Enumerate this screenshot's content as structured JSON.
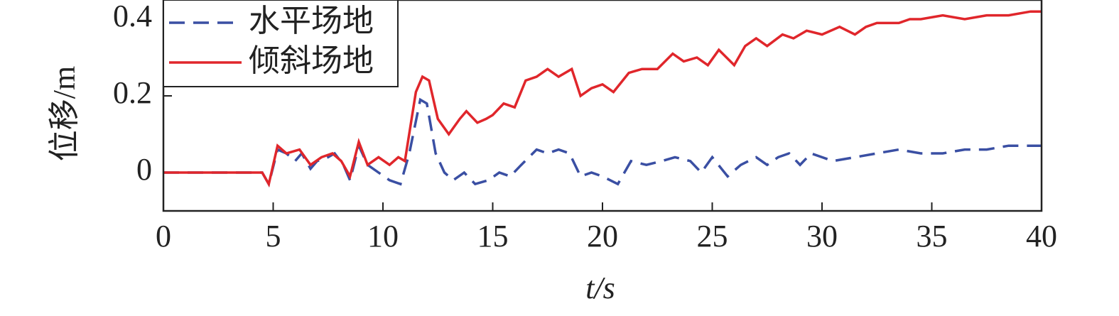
{
  "chart_data": {
    "type": "line",
    "xlabel": "t/s",
    "ylabel": "位移/m",
    "xlim": [
      0,
      40
    ],
    "xticks": [
      0,
      5,
      10,
      15,
      20,
      25,
      30,
      35,
      40
    ],
    "ylim": [
      -0.1,
      0.45
    ],
    "yticks": [
      0,
      0.2,
      0.4
    ],
    "legend": "upper left",
    "series": [
      {
        "name": "水平场地",
        "color": "#3a4fa3",
        "dash": true,
        "x": [
          0,
          4.5,
          4.8,
          5.2,
          5.6,
          6,
          6.3,
          6.7,
          7,
          7.5,
          7.8,
          8.2,
          8.5,
          8.9,
          9.3,
          9.8,
          10.3,
          10.8,
          11.2,
          11.7,
          12,
          12.4,
          12.8,
          13.2,
          13.7,
          14.2,
          14.8,
          15.3,
          15.8,
          16.3,
          17,
          17.5,
          18,
          18.5,
          19,
          19.5,
          20,
          20.7,
          21.3,
          22,
          22.7,
          23.3,
          24,
          24.5,
          25,
          25.7,
          26.3,
          27,
          27.5,
          28,
          28.5,
          29,
          29.5,
          30,
          30.5,
          31.5,
          32.5,
          33.5,
          34.5,
          35.5,
          36.5,
          37.5,
          38.5,
          40
        ],
        "values": [
          0,
          0,
          -0.03,
          0.06,
          0.05,
          0.03,
          0.05,
          0.01,
          0.03,
          0.04,
          0.05,
          0.02,
          -0.02,
          0.07,
          0.02,
          0,
          -0.02,
          -0.03,
          0.05,
          0.19,
          0.18,
          0.05,
          0,
          -0.02,
          0,
          -0.03,
          -0.02,
          0,
          -0.01,
          0.02,
          0.06,
          0.05,
          0.06,
          0.05,
          -0.01,
          0,
          -0.01,
          -0.03,
          0.03,
          0.02,
          0.03,
          0.04,
          0.03,
          0,
          0.04,
          -0.01,
          0.02,
          0.04,
          0.02,
          0.04,
          0.05,
          0.02,
          0.05,
          0.04,
          0.03,
          0.04,
          0.05,
          0.06,
          0.05,
          0.05,
          0.06,
          0.06,
          0.07,
          0.07
        ]
      },
      {
        "name": "倾斜场地",
        "color": "#e0262b",
        "dash": false,
        "x": [
          0,
          4.5,
          4.8,
          5.2,
          5.6,
          6.2,
          6.7,
          7.2,
          7.7,
          8.1,
          8.5,
          8.9,
          9.3,
          9.8,
          10.3,
          10.7,
          11,
          11.5,
          11.8,
          12.1,
          12.5,
          13,
          13.5,
          13.8,
          14.3,
          14.7,
          15,
          15.5,
          16,
          16.5,
          17,
          17.5,
          18,
          18.6,
          19,
          19.5,
          20,
          20.5,
          21.2,
          21.8,
          22.5,
          23.2,
          23.7,
          24.3,
          24.8,
          25.3,
          26,
          26.5,
          27,
          27.5,
          28.2,
          28.7,
          29.3,
          30,
          30.8,
          31.5,
          32,
          32.5,
          33.5,
          34,
          34.5,
          35.5,
          36.5,
          37.5,
          38.5,
          39.5,
          40
        ],
        "values": [
          0,
          0,
          -0.03,
          0.07,
          0.05,
          0.06,
          0.02,
          0.04,
          0.05,
          0.03,
          -0.01,
          0.08,
          0.02,
          0.04,
          0.02,
          0.04,
          0.03,
          0.21,
          0.25,
          0.24,
          0.14,
          0.1,
          0.14,
          0.16,
          0.13,
          0.14,
          0.15,
          0.18,
          0.17,
          0.24,
          0.25,
          0.27,
          0.25,
          0.27,
          0.2,
          0.22,
          0.23,
          0.21,
          0.26,
          0.27,
          0.27,
          0.31,
          0.29,
          0.3,
          0.28,
          0.32,
          0.28,
          0.33,
          0.35,
          0.33,
          0.36,
          0.35,
          0.37,
          0.36,
          0.38,
          0.36,
          0.38,
          0.39,
          0.39,
          0.4,
          0.4,
          0.41,
          0.4,
          0.41,
          0.41,
          0.42,
          0.42
        ]
      }
    ]
  }
}
